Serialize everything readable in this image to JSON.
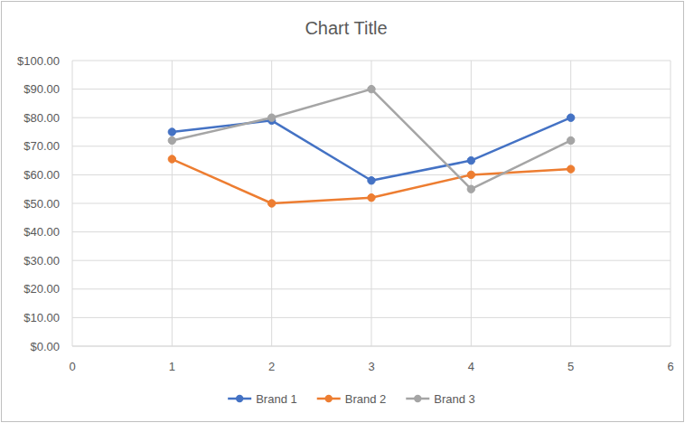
{
  "chart_data": {
    "type": "line",
    "title": "Chart Title",
    "x": [
      1,
      2,
      3,
      4,
      5
    ],
    "series": [
      {
        "name": "Brand 1",
        "color": "#4472c4",
        "values": [
          75,
          79,
          58,
          65,
          80
        ]
      },
      {
        "name": "Brand 2",
        "color": "#ed7d31",
        "values": [
          65.5,
          50,
          52,
          60,
          62
        ]
      },
      {
        "name": "Brand 3",
        "color": "#a5a5a5",
        "values": [
          72,
          80,
          90,
          55,
          72
        ]
      }
    ],
    "xlim": [
      0,
      6
    ],
    "xticks": [
      0,
      1,
      2,
      3,
      4,
      5,
      6
    ],
    "ylim": [
      0,
      100
    ],
    "yticks": [
      {
        "value": 0,
        "label": "$0.00"
      },
      {
        "value": 10,
        "label": "$10.00"
      },
      {
        "value": 20,
        "label": "$20.00"
      },
      {
        "value": 30,
        "label": "$30.00"
      },
      {
        "value": 40,
        "label": "$40.00"
      },
      {
        "value": 50,
        "label": "$50.00"
      },
      {
        "value": 60,
        "label": "$60.00"
      },
      {
        "value": 70,
        "label": "$70.00"
      },
      {
        "value": 80,
        "label": "$80.00"
      },
      {
        "value": 90,
        "label": "$90.00"
      },
      {
        "value": 100,
        "label": "$100.00"
      }
    ],
    "grid": true,
    "legend": "bottom",
    "marker": "circle"
  }
}
